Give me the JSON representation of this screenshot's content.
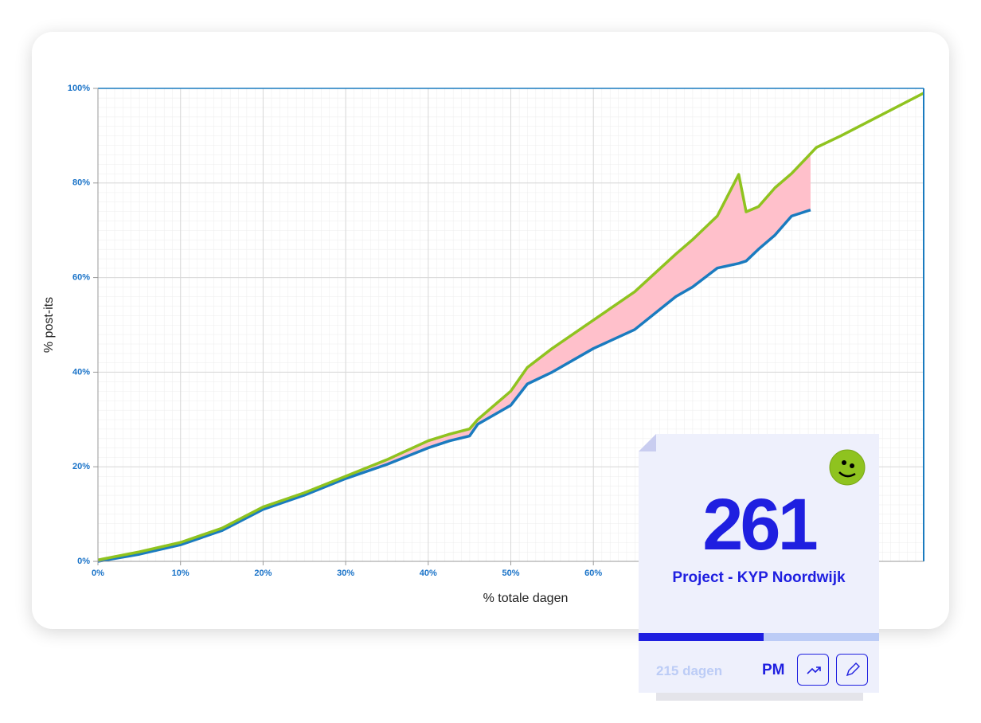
{
  "chart_data": {
    "type": "line",
    "x_label": "% totale dagen",
    "y_label": "% post-its",
    "x": [
      0,
      5,
      10,
      15,
      20,
      25,
      30,
      35,
      40,
      42.6,
      45,
      46,
      50,
      52,
      55,
      60,
      65,
      70,
      72,
      75,
      77.6,
      78.5,
      80,
      82,
      84,
      86.3,
      87,
      90,
      95,
      100
    ],
    "series": [
      {
        "color": "#8fc31f",
        "values": [
          0.3,
          2,
          4,
          7,
          11.5,
          14.5,
          18,
          21.5,
          25.5,
          26.9,
          28,
          30,
          36,
          41,
          45,
          51,
          57,
          65,
          68,
          73,
          81.8,
          73.9,
          75,
          79,
          82,
          86.2,
          87.5,
          90,
          94.5,
          99
        ]
      },
      {
        "color": "#1a7bbf",
        "values": [
          0,
          1.5,
          3.5,
          6.5,
          11,
          14,
          17.5,
          20.5,
          24,
          25.5,
          26.5,
          29,
          33,
          37.5,
          40,
          45,
          49,
          56,
          58,
          62,
          63,
          63.5,
          66,
          69,
          73,
          74.3,
          null,
          null,
          null,
          null
        ]
      }
    ],
    "fill_between_color": "#ffc0cb",
    "xlim": [
      0,
      100
    ],
    "ylim": [
      0,
      100
    ],
    "xticks": [
      {
        "value": 0,
        "label": "0%"
      },
      {
        "value": 10,
        "label": "10%"
      },
      {
        "value": 20,
        "label": "20%"
      },
      {
        "value": 30,
        "label": "30%"
      },
      {
        "value": 40,
        "label": "40%"
      },
      {
        "value": 50,
        "label": "50%"
      },
      {
        "value": 60,
        "label": "60%"
      }
    ],
    "yticks": [
      {
        "value": 0,
        "label": "0%"
      },
      {
        "value": 20,
        "label": "20%"
      },
      {
        "value": 40,
        "label": "40%"
      },
      {
        "value": 60,
        "label": "60%"
      },
      {
        "value": 80,
        "label": "80%"
      },
      {
        "value": 100,
        "label": "100%"
      }
    ],
    "grid": true
  },
  "card": {
    "count": "261",
    "project": "Project - KYP Noordwijk",
    "progress": 52,
    "days": "215 dagen",
    "role": "PM"
  }
}
